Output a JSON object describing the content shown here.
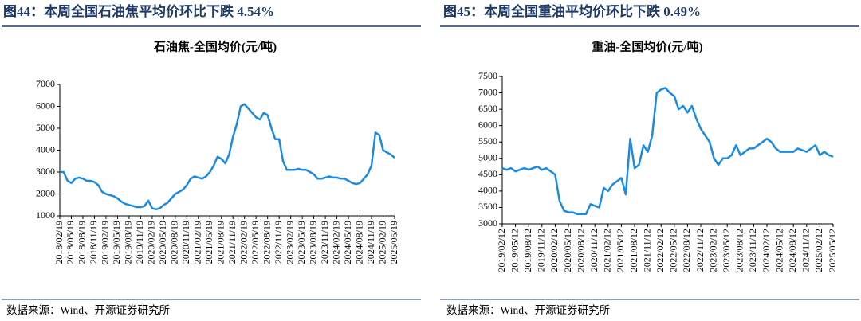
{
  "chart_data": [
    {
      "type": "line",
      "figure_title": "图44：本周全国石油焦平均价环比下跌 4.54%",
      "title": "石油焦-全国均价(元/吨)",
      "source": "数据来源：Wind、开源证券研究所",
      "categories": [
        "2018/02/19",
        null,
        null,
        "2018/05/19",
        null,
        null,
        "2018/08/19",
        null,
        null,
        "2018/11/19",
        null,
        null,
        "2019/02/19",
        null,
        null,
        "2019/05/19",
        null,
        null,
        "2019/08/19",
        null,
        null,
        "2019/11/19",
        null,
        null,
        "2020/02/19",
        null,
        null,
        "2020/05/19",
        null,
        null,
        "2020/08/19",
        null,
        null,
        "2020/11/19",
        null,
        null,
        "2021/02/19",
        null,
        null,
        "2021/05/19",
        null,
        null,
        "2021/08/19",
        null,
        null,
        "2021/11/19",
        null,
        null,
        "2022/02/19",
        null,
        null,
        "2022/05/19",
        null,
        null,
        "2022/08/19",
        null,
        null,
        "2022/11/19",
        null,
        null,
        "2023/02/19",
        null,
        null,
        "2023/05/19",
        null,
        null,
        "2023/08/19",
        null,
        null,
        "2023/11/19",
        null,
        null,
        "2024/02/19",
        null,
        null,
        "2024/05/19",
        null,
        null,
        "2024/08/19",
        null,
        null,
        "2024/11/19",
        null,
        null,
        "2025/02/19",
        null,
        null,
        "2025/05/19"
      ],
      "values": [
        3000,
        3000,
        2600,
        2500,
        2700,
        2750,
        2700,
        2600,
        2600,
        2550,
        2400,
        2100,
        2000,
        1950,
        1900,
        1800,
        1650,
        1550,
        1500,
        1450,
        1400,
        1400,
        1450,
        1700,
        1350,
        1300,
        1350,
        1500,
        1600,
        1800,
        2000,
        2100,
        2200,
        2400,
        2700,
        2800,
        2750,
        2700,
        2800,
        3000,
        3300,
        3700,
        3600,
        3400,
        3800,
        4600,
        5200,
        6000,
        6100,
        5900,
        5700,
        5500,
        5400,
        5700,
        5600,
        5000,
        4500,
        4500,
        3500,
        3100,
        3100,
        3100,
        3150,
        3100,
        3100,
        3000,
        2900,
        2700,
        2700,
        2750,
        2800,
        2750,
        2750,
        2700,
        2700,
        2600,
        2500,
        2450,
        2500,
        2700,
        2900,
        3300,
        4800,
        4700,
        4000,
        3900,
        3800,
        3650
      ],
      "color": "#1a8be0",
      "ylim": [
        1000,
        7000
      ],
      "yticks": [
        1000,
        2000,
        3000,
        4000,
        5000,
        6000,
        7000
      ]
    },
    {
      "type": "line",
      "figure_title": "图45：本周全国重油平均价环比下跌 0.49%",
      "title": "重油-全国均价(元/吨)",
      "source": "数据来源：Wind、开源证券研究所",
      "categories": [
        "2019/02/12",
        null,
        null,
        "2019/05/12",
        null,
        null,
        "2019/08/12",
        null,
        null,
        "2019/11/12",
        null,
        null,
        "2020/02/12",
        null,
        null,
        "2020/05/12",
        null,
        null,
        "2020/08/12",
        null,
        null,
        "2020/11/12",
        null,
        null,
        "2021/02/12",
        null,
        null,
        "2021/05/12",
        null,
        null,
        "2021/08/12",
        null,
        null,
        "2021/11/12",
        null,
        null,
        "2022/02/12",
        null,
        null,
        "2022/05/12",
        null,
        null,
        "2022/08/12",
        null,
        null,
        "2022/11/12",
        null,
        null,
        "2023/02/12",
        null,
        null,
        "2023/05/12",
        null,
        null,
        "2023/08/12",
        null,
        null,
        "2023/11/12",
        null,
        null,
        "2024/02/12",
        null,
        null,
        "2024/05/12",
        null,
        null,
        "2024/08/12",
        null,
        null,
        "2024/11/12",
        null,
        null,
        "2025/02/12",
        null,
        null,
        "2025/05/12"
      ],
      "values": [
        4700,
        4650,
        4700,
        4600,
        4650,
        4700,
        4650,
        4700,
        4750,
        4650,
        4700,
        4600,
        4500,
        3700,
        3400,
        3350,
        3350,
        3300,
        3300,
        3300,
        3600,
        3550,
        3500,
        4100,
        4000,
        4200,
        4300,
        4400,
        3900,
        5600,
        4700,
        4800,
        5400,
        5200,
        5700,
        7000,
        7100,
        7150,
        7000,
        6900,
        6500,
        6600,
        6400,
        6600,
        6200,
        5900,
        5700,
        5500,
        5000,
        4800,
        5000,
        5000,
        5100,
        5400,
        5100,
        5200,
        5300,
        5300,
        5400,
        5500,
        5600,
        5500,
        5300,
        5200,
        5200,
        5200,
        5200,
        5300,
        5250,
        5200,
        5300,
        5400,
        5100,
        5200,
        5100,
        5050
      ],
      "color": "#1a8be0",
      "ylim": [
        3000,
        7500
      ],
      "yticks": [
        3000,
        3500,
        4000,
        4500,
        5000,
        5500,
        6000,
        6500,
        7000,
        7500
      ]
    }
  ]
}
